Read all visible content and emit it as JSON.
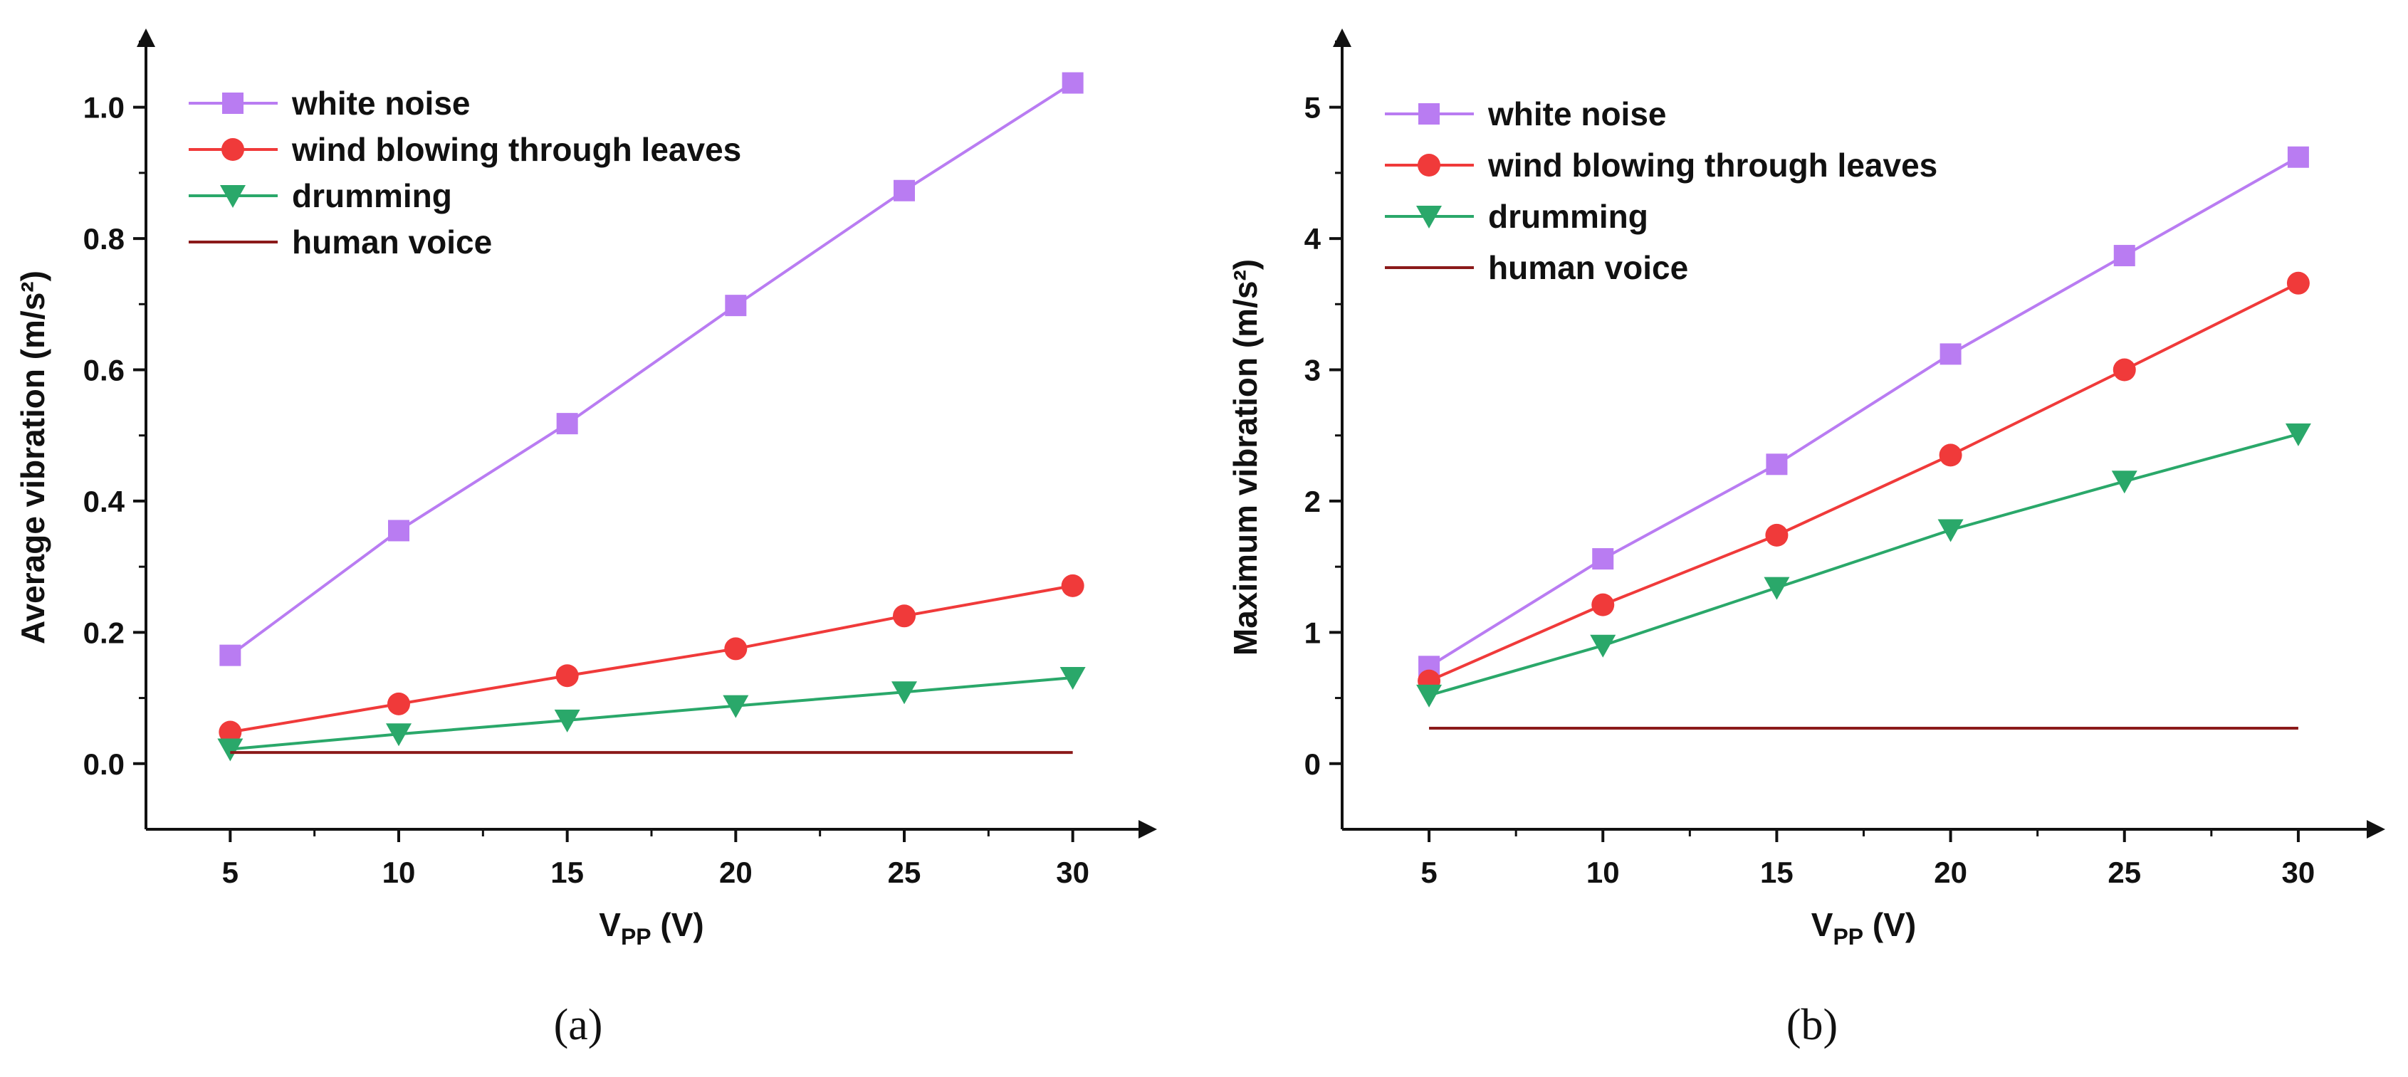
{
  "colors": {
    "white_noise": "#b97cf2",
    "wind": "#f03a3a",
    "drumming": "#2aa86a",
    "human_voice": "#8b1a1a",
    "axis": "#111111"
  },
  "chart_data": [
    {
      "type": "line",
      "panel_label": "(a)",
      "title": "",
      "xlabel_main": "V",
      "xlabel_sub": "PP",
      "xlabel_unit": " (V)",
      "ylabel": "Average vibration (m/s²)",
      "x": [
        5,
        10,
        15,
        20,
        25,
        30
      ],
      "xticks": [
        "5",
        "10",
        "15",
        "20",
        "25",
        "30"
      ],
      "xlim": [
        2.5,
        32.5
      ],
      "ylim": [
        -0.1,
        1.12
      ],
      "yticks": [
        "0.0",
        "0.2",
        "0.4",
        "0.6",
        "0.8",
        "1.0"
      ],
      "ytick_values": [
        0,
        0.2,
        0.4,
        0.6,
        0.8,
        1.0
      ],
      "legend_position": "top-left",
      "series": [
        {
          "key": "white_noise",
          "name": "white noise",
          "marker": "square",
          "values": [
            0.165,
            0.355,
            0.518,
            0.698,
            0.873,
            1.037
          ]
        },
        {
          "key": "wind",
          "name": "wind blowing through leaves",
          "marker": "circle",
          "values": [
            0.048,
            0.091,
            0.134,
            0.175,
            0.225,
            0.271
          ]
        },
        {
          "key": "drumming",
          "name": "drumming",
          "marker": "triangle-down",
          "values": [
            0.022,
            0.045,
            0.066,
            0.088,
            0.109,
            0.131
          ]
        },
        {
          "key": "human_voice",
          "name": "human voice",
          "marker": "none",
          "values": [
            0.017,
            0.017,
            0.017,
            0.017,
            0.017,
            0.017
          ]
        }
      ]
    },
    {
      "type": "line",
      "panel_label": "(b)",
      "title": "",
      "xlabel_main": "V",
      "xlabel_sub": "PP",
      "xlabel_unit": " (V)",
      "ylabel": "Maximum vibration (m/s²)",
      "x": [
        5,
        10,
        15,
        20,
        25,
        30
      ],
      "xticks": [
        "5",
        "10",
        "15",
        "20",
        "25",
        "30"
      ],
      "xlim": [
        2.5,
        32.5
      ],
      "ylim": [
        -0.5,
        5.6
      ],
      "yticks": [
        "0",
        "1",
        "2",
        "3",
        "4",
        "5"
      ],
      "ytick_values": [
        0,
        1,
        2,
        3,
        4,
        5
      ],
      "legend_position": "top-left",
      "series": [
        {
          "key": "white_noise",
          "name": "white noise",
          "marker": "square",
          "values": [
            0.74,
            1.56,
            2.28,
            3.12,
            3.87,
            4.62
          ]
        },
        {
          "key": "wind",
          "name": "wind blowing through leaves",
          "marker": "circle",
          "values": [
            0.63,
            1.21,
            1.74,
            2.35,
            3.0,
            3.66
          ]
        },
        {
          "key": "drumming",
          "name": "drumming",
          "marker": "triangle-down",
          "values": [
            0.52,
            0.9,
            1.34,
            1.78,
            2.15,
            2.51
          ]
        },
        {
          "key": "human_voice",
          "name": "human voice",
          "marker": "none",
          "values": [
            0.27,
            0.27,
            0.27,
            0.27,
            0.27,
            0.27
          ]
        }
      ]
    }
  ]
}
